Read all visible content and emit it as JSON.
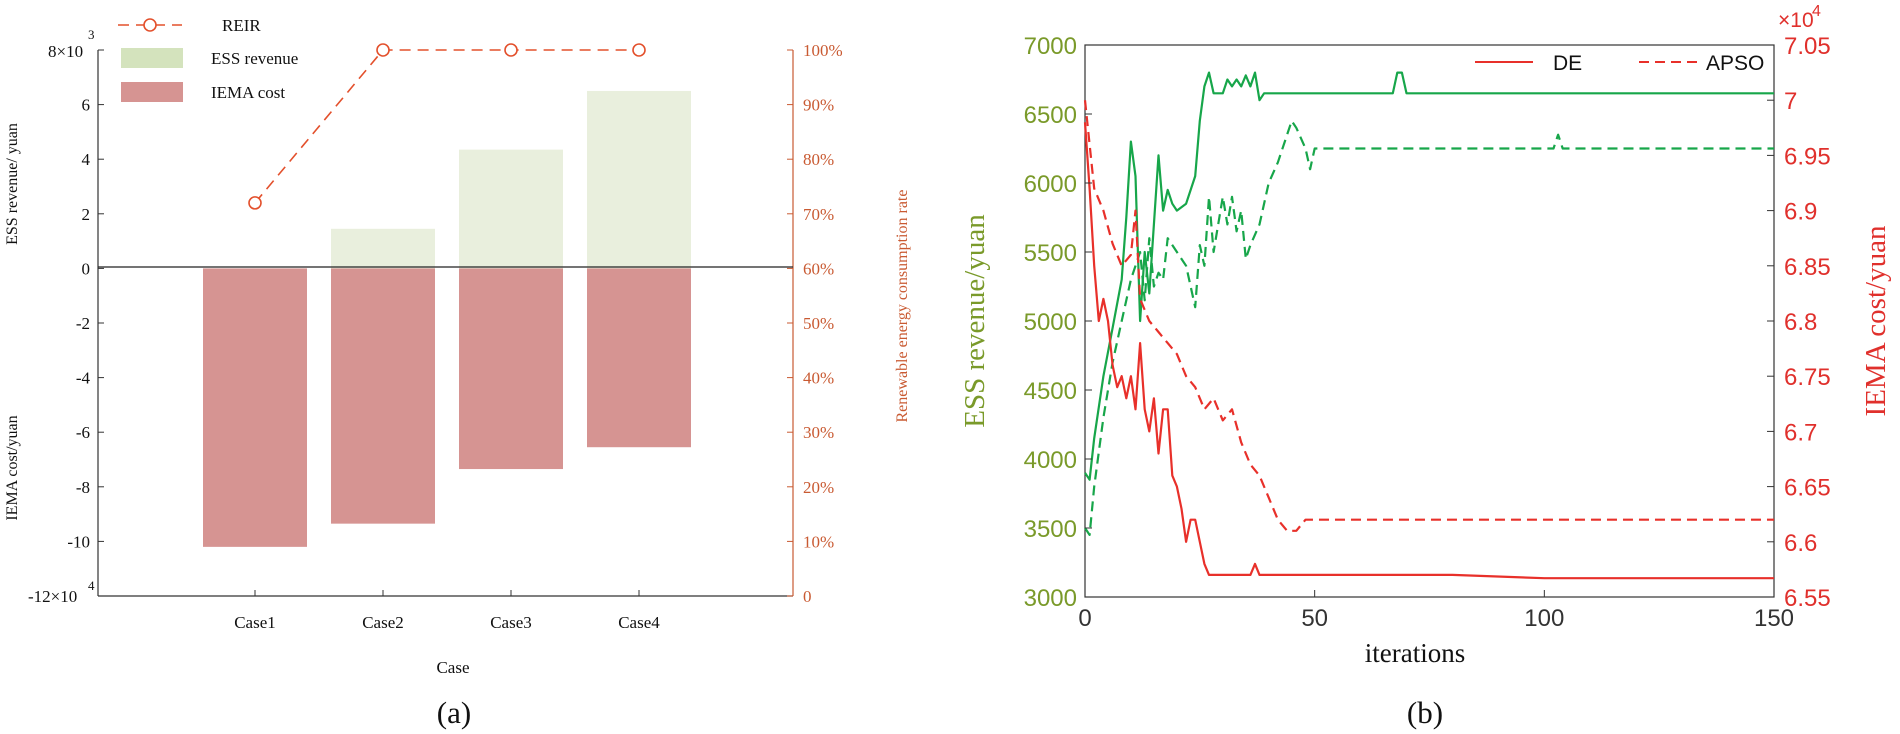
{
  "panel_a": {
    "label": "(a)",
    "left_axis_top_label": "ESS revenue/ yuan",
    "left_axis_bottom_label": "IEMA cost/yuan",
    "right_axis_label": "Renewable energy consumption rate",
    "top_exponent": "3",
    "top_exponent_glyph": "8×10",
    "bottom_exponent": "4",
    "bottom_exponent_glyph": "-12×10"
  },
  "panel_b": {
    "label": "(b)",
    "right_exponent_base": "×10",
    "right_exponent_power": "4"
  },
  "chart_data": [
    {
      "type": "bar",
      "title": "",
      "xlabel": "Case",
      "categories": [
        "Case1",
        "Case2",
        "Case3",
        "Case4"
      ],
      "y_ticks": [
        "8",
        "6",
        "4",
        "2",
        "0",
        "-2",
        "-4",
        "-6",
        "-8",
        "-10",
        "-12"
      ],
      "y_tick_values": [
        8,
        6,
        4,
        2,
        0,
        -2,
        -4,
        -6,
        -8,
        -10,
        -12
      ],
      "ylim": [
        -12,
        8
      ],
      "series": [
        {
          "name": "ESS revenue",
          "values": [
            0,
            1.45,
            4.35,
            6.5
          ],
          "color": "#e9efdd"
        },
        {
          "name": "IEMA cost",
          "values": [
            -10.2,
            -9.35,
            -7.35,
            -6.55
          ],
          "color": "#d69492"
        },
        {
          "name": "REIR",
          "values": [
            72,
            100,
            100,
            100
          ],
          "axis": "right",
          "color": "#e3502c"
        }
      ],
      "y2_ticks": [
        "100%",
        "90%",
        "80%",
        "70%",
        "60%",
        "50%",
        "40%",
        "30%",
        "20%",
        "10%",
        "0"
      ],
      "y2_tick_values": [
        100,
        90,
        80,
        70,
        60,
        50,
        40,
        30,
        20,
        10,
        0
      ],
      "y2lim": [
        0,
        100
      ],
      "legend": "top-left",
      "grid": false
    },
    {
      "type": "line",
      "title": "",
      "xlabel": "iterations",
      "ylabel": "ESS revenue/yuan",
      "y2label": "IEMA cost/yuan",
      "xlim": [
        0,
        150
      ],
      "ylim": [
        3000,
        7000
      ],
      "y2lim": [
        6.55,
        7.05
      ],
      "x_ticks": [
        "0",
        "50",
        "100",
        "150"
      ],
      "x_tick_values": [
        0,
        50,
        100,
        150
      ],
      "y_ticks": [
        "7000",
        "6500",
        "6000",
        "5500",
        "5000",
        "4500",
        "4000",
        "3500",
        "3000"
      ],
      "y_tick_values": [
        7000,
        6500,
        6000,
        5500,
        5000,
        4500,
        4000,
        3500,
        3000
      ],
      "y2_ticks": [
        "7.05",
        "7",
        "6.95",
        "6.9",
        "6.85",
        "6.8",
        "6.75",
        "6.7",
        "6.65",
        "6.6",
        "6.55"
      ],
      "y2_tick_values": [
        7.05,
        7.0,
        6.95,
        6.9,
        6.85,
        6.8,
        6.75,
        6.7,
        6.65,
        6.6,
        6.55
      ],
      "legend": "top-right",
      "grid": false,
      "legend_entries": [
        {
          "name": "DE",
          "style": "solid",
          "color": "#e8302a"
        },
        {
          "name": "APSO",
          "style": "dashed",
          "color": "#e8302a"
        }
      ],
      "series": [
        {
          "name": "DE ESS revenue",
          "axis": "left",
          "style": "solid",
          "color": "#17a64a",
          "x": [
            0,
            1,
            2,
            4,
            6,
            8,
            9,
            10,
            11,
            12,
            13,
            14,
            15,
            16,
            17,
            18,
            19,
            20,
            22,
            24,
            25,
            26,
            27,
            28,
            30,
            31,
            32,
            33,
            34,
            35,
            36,
            37,
            38,
            39,
            40,
            50,
            60,
            65,
            67,
            68,
            69,
            70,
            80,
            100,
            120,
            150
          ],
          "y": [
            3900,
            3850,
            4150,
            4600,
            4950,
            5300,
            5750,
            6300,
            6050,
            5000,
            5500,
            5200,
            5700,
            6200,
            5800,
            5950,
            5850,
            5800,
            5850,
            6050,
            6450,
            6700,
            6800,
            6650,
            6650,
            6750,
            6700,
            6750,
            6700,
            6780,
            6700,
            6800,
            6600,
            6650,
            6650,
            6650,
            6650,
            6650,
            6650,
            6800,
            6800,
            6650,
            6650,
            6650,
            6650,
            6650
          ]
        },
        {
          "name": "APSO ESS revenue",
          "axis": "left",
          "style": "dashed",
          "color": "#17a64a",
          "x": [
            0,
            1,
            2,
            4,
            6,
            8,
            10,
            11,
            12,
            13,
            14,
            15,
            16,
            17,
            18,
            20,
            22,
            24,
            25,
            26,
            27,
            28,
            30,
            31,
            32,
            33,
            34,
            35,
            36,
            38,
            40,
            42,
            44,
            45,
            46,
            48,
            49,
            50,
            60,
            80,
            100,
            102,
            103,
            104,
            120,
            150
          ],
          "y": [
            3500,
            3450,
            3800,
            4300,
            4700,
            5000,
            5300,
            5400,
            5500,
            5150,
            5600,
            5250,
            5350,
            5300,
            5600,
            5500,
            5400,
            5100,
            5550,
            5400,
            5900,
            5500,
            5900,
            5700,
            5900,
            5650,
            5800,
            5450,
            5550,
            5700,
            6000,
            6150,
            6350,
            6450,
            6400,
            6250,
            6100,
            6250,
            6250,
            6250,
            6250,
            6250,
            6350,
            6250,
            6250,
            6250
          ]
        },
        {
          "name": "DE IEMA cost",
          "axis": "right",
          "style": "solid",
          "color": "#e8302a",
          "x": [
            0,
            1,
            2,
            3,
            4,
            5,
            6,
            7,
            8,
            9,
            10,
            11,
            12,
            13,
            14,
            15,
            16,
            17,
            18,
            19,
            20,
            21,
            22,
            23,
            24,
            25,
            26,
            27,
            28,
            30,
            35,
            36,
            37,
            38,
            50,
            80,
            100,
            150
          ],
          "y": [
            6.98,
            6.92,
            6.85,
            6.8,
            6.82,
            6.8,
            6.76,
            6.74,
            6.75,
            6.73,
            6.75,
            6.72,
            6.78,
            6.72,
            6.7,
            6.73,
            6.68,
            6.72,
            6.72,
            6.66,
            6.65,
            6.63,
            6.6,
            6.62,
            6.62,
            6.6,
            6.58,
            6.57,
            6.57,
            6.57,
            6.57,
            6.57,
            6.58,
            6.57,
            6.57,
            6.57,
            6.567,
            6.567
          ]
        },
        {
          "name": "APSO IEMA cost",
          "axis": "right",
          "style": "dashed",
          "color": "#e8302a",
          "x": [
            0,
            1,
            2,
            4,
            6,
            8,
            10,
            11,
            12,
            14,
            16,
            18,
            20,
            22,
            24,
            26,
            28,
            30,
            32,
            34,
            36,
            38,
            40,
            42,
            44,
            46,
            48,
            50,
            60,
            80,
            100,
            120,
            150
          ],
          "y": [
            7.0,
            6.96,
            6.92,
            6.9,
            6.87,
            6.85,
            6.86,
            6.9,
            6.82,
            6.8,
            6.79,
            6.78,
            6.77,
            6.75,
            6.74,
            6.72,
            6.73,
            6.71,
            6.72,
            6.69,
            6.67,
            6.66,
            6.64,
            6.62,
            6.61,
            6.61,
            6.62,
            6.62,
            6.62,
            6.62,
            6.62,
            6.62,
            6.62
          ]
        }
      ]
    }
  ]
}
